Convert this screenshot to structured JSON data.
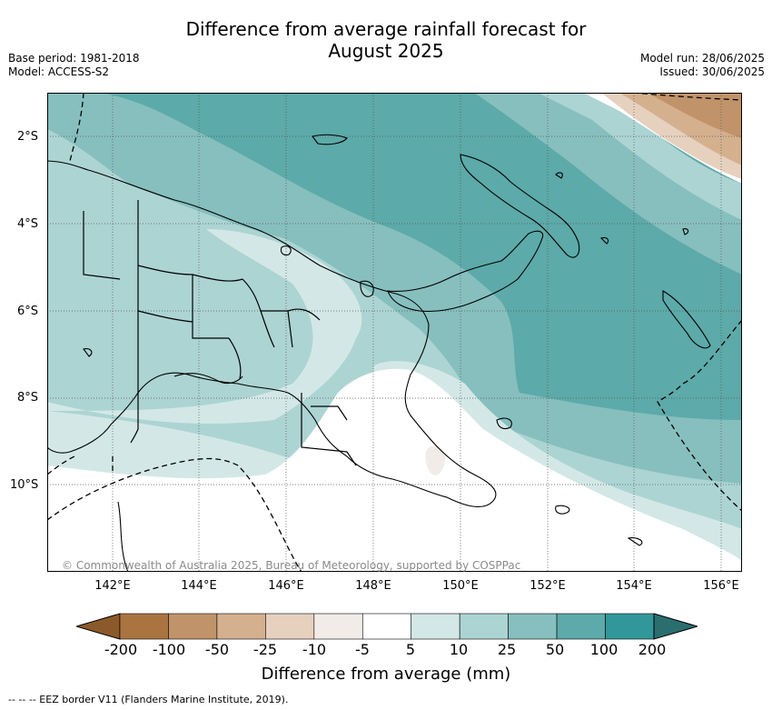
{
  "title_line1": "Difference from average rainfall forecast for",
  "title_line2": "August 2025",
  "base_period": "Base period: 1981-2018",
  "model": "Model: ACCESS-S2",
  "model_run": "Model run: 28/06/2025",
  "issued": "Issued: 30/06/2025",
  "lon_ticks": [
    "142°E",
    "144°E",
    "146°E",
    "148°E",
    "150°E",
    "152°E",
    "154°E",
    "156°E"
  ],
  "lat_ticks": [
    "2°S",
    "4°S",
    "6°S",
    "8°S",
    "10°S"
  ],
  "copyright": "© Commonwealth of Australia 2025, Bureau of Meteorology, supported by COSPPac",
  "colorbar": {
    "title": "Difference from average (mm)",
    "labels": [
      "-200",
      "-100",
      "-50",
      "-25",
      "-10",
      "-5",
      "5",
      "10",
      "25",
      "50",
      "100",
      "200"
    ],
    "colors": [
      "#8c5a2a",
      "#aa7440",
      "#c1936a",
      "#d4b08f",
      "#e6d1bf",
      "#f1ece8",
      "#ffffff",
      "#d3e8e6",
      "#acd4d3",
      "#86bfbe",
      "#5caaa9",
      "#32979a",
      "#2a6e70"
    ]
  },
  "footnote": "--  --  -- EEZ border V11 (Flanders Marine Institute, 2019)."
}
